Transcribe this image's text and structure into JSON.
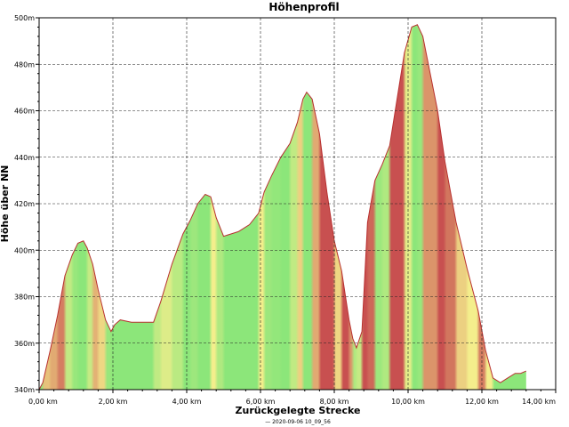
{
  "chart_data": {
    "type": "area",
    "title": "Höhenprofil",
    "xlabel": "Zurückgelegte Strecke",
    "ylabel": "Höhe über NN",
    "footer": "— 2020-09-06 10_09_56",
    "xlim": [
      0,
      14
    ],
    "ylim": [
      340,
      500
    ],
    "x_ticks": [
      {
        "value": 0,
        "label": "0,00 km"
      },
      {
        "value": 2,
        "label": "2,00 km"
      },
      {
        "value": 4,
        "label": "4,00 km"
      },
      {
        "value": 6,
        "label": "6,00 km"
      },
      {
        "value": 8,
        "label": "8,00 km"
      },
      {
        "value": 10,
        "label": "10,00 km"
      },
      {
        "value": 12,
        "label": "12,00 km"
      },
      {
        "value": 14,
        "label": "14,00 km"
      }
    ],
    "y_ticks": [
      {
        "value": 340,
        "label": "340m"
      },
      {
        "value": 360,
        "label": "360m"
      },
      {
        "value": 380,
        "label": "380m"
      },
      {
        "value": 400,
        "label": "400m"
      },
      {
        "value": 420,
        "label": "420m"
      },
      {
        "value": 440,
        "label": "440m"
      },
      {
        "value": 460,
        "label": "460m"
      },
      {
        "value": 480,
        "label": "480m"
      },
      {
        "value": 500,
        "label": "500m"
      }
    ],
    "grid": true,
    "colors": {
      "steep": "#c85050",
      "moderate": "#f4ee8c",
      "flat": "#8ce67a",
      "line": "#b83030"
    },
    "series": [
      {
        "x": [
          0.0,
          0.1,
          0.3,
          0.5,
          0.7,
          0.9,
          1.05,
          1.2,
          1.3,
          1.45,
          1.6,
          1.8,
          1.95,
          2.05,
          2.2,
          2.5,
          2.9,
          3.1,
          3.3,
          3.6,
          3.9,
          4.1,
          4.3,
          4.5,
          4.65,
          4.8,
          5.0,
          5.2,
          5.4,
          5.7,
          5.95,
          6.1,
          6.3,
          6.55,
          6.8,
          7.0,
          7.15,
          7.25,
          7.4,
          7.6,
          7.8,
          8.0,
          8.2,
          8.4,
          8.5,
          8.6,
          8.75,
          8.9,
          9.1,
          9.3,
          9.5,
          9.7,
          9.9,
          10.1,
          10.25,
          10.4,
          10.6,
          10.8,
          11.0,
          11.3,
          11.6,
          11.9,
          12.1,
          12.3,
          12.5,
          12.7,
          12.9,
          13.05,
          13.2
        ],
        "y": [
          340,
          343,
          357,
          372,
          389,
          398,
          403,
          404,
          401,
          394,
          383,
          370,
          365,
          368,
          370,
          369,
          369,
          369,
          378,
          394,
          407,
          413,
          420,
          424,
          423,
          414,
          406,
          407,
          408,
          411,
          416,
          425,
          432,
          440,
          446,
          455,
          465,
          468,
          465,
          450,
          425,
          404,
          391,
          370,
          362,
          358,
          365,
          412,
          430,
          437,
          445,
          465,
          485,
          496,
          497,
          492,
          476,
          460,
          438,
          412,
          392,
          374,
          357,
          345,
          343,
          345,
          347,
          347,
          348
        ]
      }
    ]
  }
}
